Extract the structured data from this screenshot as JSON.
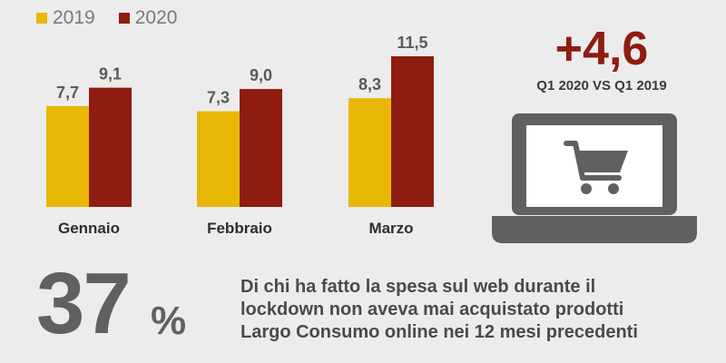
{
  "chart_data": {
    "type": "bar",
    "categories": [
      "Gennaio",
      "Febbraio",
      "Marzo"
    ],
    "series": [
      {
        "name": "2019",
        "values": [
          7.7,
          7.3,
          8.3
        ],
        "labels": [
          "7,7",
          "7,3",
          "8,3"
        ],
        "color": "#e8b705"
      },
      {
        "name": "2020",
        "values": [
          9.1,
          9.0,
          11.5
        ],
        "labels": [
          "9,1",
          "9,0",
          "11,5"
        ],
        "color": "#8e1c10"
      }
    ],
    "ylim": [
      0,
      11.5
    ],
    "grid": false,
    "legend": "top-left"
  },
  "kpi": {
    "value": "+4,6",
    "caption": "Q1 2020 VS Q1 2019"
  },
  "icon": "laptop-shopping-cart-icon",
  "stat": {
    "value": "37",
    "unit": "%",
    "text_lines": [
      "Di chi ha fatto la spesa sul web durante il",
      "lockdown non aveva mai acquistato prodotti",
      "Largo Consumo online nei 12 mesi precedenti"
    ]
  },
  "colors": {
    "accent": "#8e1c10",
    "secondary": "#e8b705",
    "text_gray": "#5f6062",
    "background": "#ececec"
  }
}
